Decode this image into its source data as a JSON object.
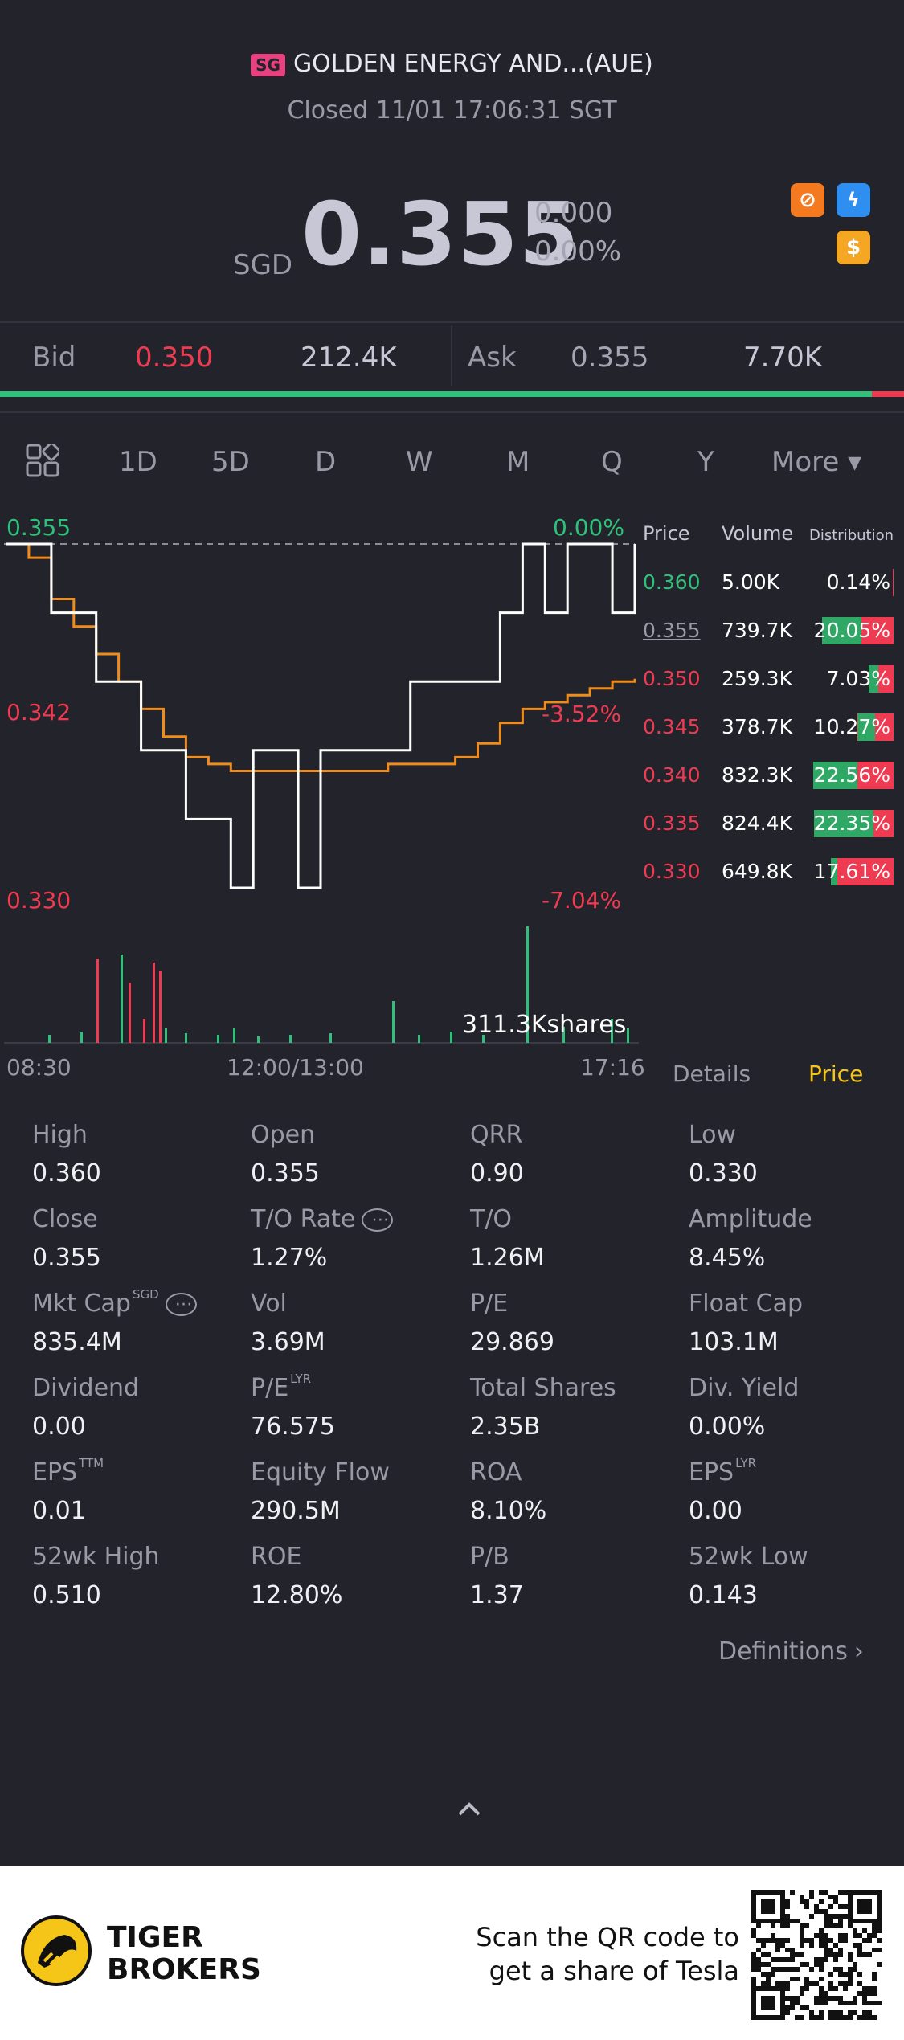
{
  "header": {
    "exchange_badge": "SG",
    "title": "GOLDEN ENERGY AND...(AUE)",
    "status": "Closed 11/01 17:06:31 SGT"
  },
  "quote": {
    "currency": "SGD",
    "price": "0.355",
    "change": "0.000",
    "change_pct": "0.00%"
  },
  "bid_ask": {
    "bid_label": "Bid",
    "bid_price": "0.350",
    "bid_size": "212.4K",
    "ask_label": "Ask",
    "ask_price": "0.355",
    "ask_size": "7.70K"
  },
  "tabs": {
    "d1": "1D",
    "d5": "5D",
    "d": "D",
    "w": "W",
    "m": "M",
    "q": "Q",
    "y": "Y",
    "more": "More ▾"
  },
  "chart": {
    "y_high": "0.355",
    "y_mid": "0.342",
    "y_low": "0.330",
    "pct_high": "0.00%",
    "pct_mid": "-3.52%",
    "pct_low": "-7.04%",
    "volume_label": "311.3Kshares",
    "time_start": "08:30",
    "time_mid": "12:00/13:00",
    "time_end": "17:16"
  },
  "chart_data": {
    "type": "line",
    "x_labels": [
      "08:30",
      "12:00/13:00",
      "17:16"
    ],
    "y_range": [
      0.33,
      0.355
    ],
    "series": [
      {
        "values": [
          0.355,
          0.355,
          0.35,
          0.35,
          0.345,
          0.345,
          0.34,
          0.34,
          0.335,
          0.335,
          0.33,
          0.34,
          0.34,
          0.33,
          0.34,
          0.34,
          0.34,
          0.34,
          0.345,
          0.345,
          0.345,
          0.345,
          0.35,
          0.355,
          0.35,
          0.355,
          0.355,
          0.35,
          0.355
        ]
      },
      {
        "values": [
          0.355,
          0.354,
          0.351,
          0.349,
          0.347,
          0.345,
          0.343,
          0.341,
          0.3395,
          0.339,
          0.3385,
          0.3385,
          0.3385,
          0.3385,
          0.3385,
          0.3385,
          0.3385,
          0.339,
          0.339,
          0.339,
          0.3395,
          0.3405,
          0.342,
          0.343,
          0.3435,
          0.344,
          0.3445,
          0.345,
          0.3452
        ]
      }
    ]
  },
  "order_book": {
    "headers": {
      "price": "Price",
      "volume": "Volume",
      "distribution": "Distribution"
    },
    "rows": [
      {
        "price": "0.360",
        "volume": "5.00K",
        "dist": "0.14%",
        "pct": 0.14,
        "buy": 0.0
      },
      {
        "price": "0.355",
        "volume": "739.7K",
        "dist": "20.05%",
        "pct": 20.05,
        "buy": 0.55
      },
      {
        "price": "0.350",
        "volume": "259.3K",
        "dist": "7.03%",
        "pct": 7.03,
        "buy": 0.4
      },
      {
        "price": "0.345",
        "volume": "378.7K",
        "dist": "10.27%",
        "pct": 10.27,
        "buy": 0.5
      },
      {
        "price": "0.340",
        "volume": "832.3K",
        "dist": "22.56%",
        "pct": 22.56,
        "buy": 0.55
      },
      {
        "price": "0.335",
        "volume": "824.4K",
        "dist": "22.35%",
        "pct": 22.35,
        "buy": 0.75
      },
      {
        "price": "0.330",
        "volume": "649.8K",
        "dist": "17.61%",
        "pct": 17.61,
        "buy": 0.1
      }
    ]
  },
  "subtabs": {
    "details": "Details",
    "price": "Price"
  },
  "stats": [
    {
      "label": "High",
      "value": "0.360"
    },
    {
      "label": "Open",
      "value": "0.355"
    },
    {
      "label": "QRR",
      "value": "0.90"
    },
    {
      "label": "Low",
      "value": "0.330"
    },
    {
      "label": "Close",
      "value": "0.355"
    },
    {
      "label": "T/O Rate",
      "value": "1.27%"
    },
    {
      "label": "T/O",
      "value": "1.26M"
    },
    {
      "label": "Amplitude",
      "value": "8.45%"
    },
    {
      "label": "Mkt Cap",
      "sup": "SGD",
      "value": "835.4M"
    },
    {
      "label": "Vol",
      "value": "3.69M"
    },
    {
      "label": "P/E",
      "value": "29.869"
    },
    {
      "label": "Float Cap",
      "value": "103.1M"
    },
    {
      "label": "Dividend",
      "value": "0.00"
    },
    {
      "label": "P/E",
      "sup": "LYR",
      "value": "76.575"
    },
    {
      "label": "Total Shares",
      "value": "2.35B"
    },
    {
      "label": "Div. Yield",
      "value": "0.00%"
    },
    {
      "label": "EPS",
      "sup": "TTM",
      "value": "0.01"
    },
    {
      "label": "Equity Flow",
      "value": "290.5M"
    },
    {
      "label": "ROA",
      "value": "8.10%"
    },
    {
      "label": "EPS",
      "sup": "LYR",
      "value": "0.00"
    },
    {
      "label": "52wk High",
      "value": "0.510"
    },
    {
      "label": "ROE",
      "value": "12.80%"
    },
    {
      "label": "P/B",
      "value": "1.37"
    },
    {
      "label": "52wk Low",
      "value": "0.143"
    }
  ],
  "definitions": "Definitions",
  "footer": {
    "brand_line1": "TIGER",
    "brand_line2": "BROKERS",
    "promo_line1": "Scan the QR code to",
    "promo_line2": "get a share of Tesla"
  },
  "colors": {
    "up": "#2fc07a",
    "down": "#ef3b52",
    "accent": "#f5c518",
    "background": "#23232c"
  }
}
